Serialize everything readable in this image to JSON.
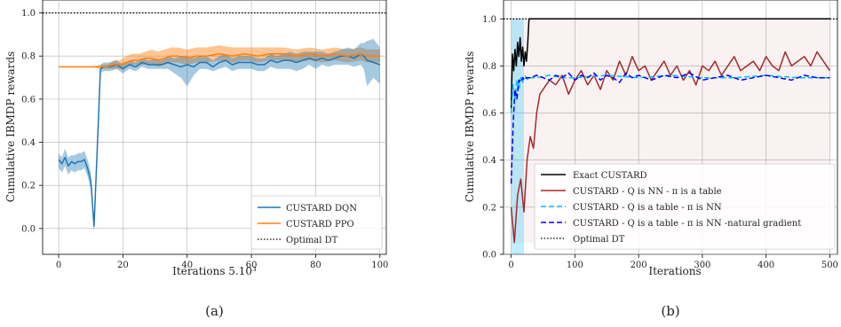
{
  "chart_data": [
    {
      "type": "line",
      "xlabel": "Iterations 5.10³",
      "ylabel": "Cumulative IBMDP rewards",
      "xlim": [
        -5,
        102
      ],
      "ylim": [
        -0.12,
        1.06
      ],
      "xticks": [
        0,
        20,
        40,
        60,
        80,
        100
      ],
      "xtick_labels": [
        "0",
        "20",
        "40",
        "60",
        "80",
        "100"
      ],
      "yticks": [
        0.0,
        0.2,
        0.4,
        0.6,
        0.8,
        1.0
      ],
      "ytick_labels": [
        "0.0",
        "0.2",
        "0.4",
        "0.6",
        "0.8",
        "1.0"
      ],
      "grid": true,
      "legend_position": "bottom-right",
      "caption": "(a)",
      "series": [
        {
          "name": "CUSTARD DQN",
          "color": "#1f77b4",
          "style": "solid",
          "x": [
            0,
            1,
            2,
            3,
            4,
            5,
            6,
            7,
            8,
            9,
            10,
            11,
            12,
            13,
            14,
            16,
            18,
            20,
            22,
            24,
            26,
            28,
            30,
            32,
            34,
            36,
            38,
            40,
            42,
            44,
            46,
            48,
            50,
            52,
            54,
            56,
            58,
            60,
            62,
            64,
            66,
            68,
            70,
            72,
            74,
            76,
            78,
            80,
            82,
            84,
            86,
            88,
            90,
            92,
            94,
            95,
            96,
            98,
            100
          ],
          "y": [
            0.32,
            0.3,
            0.33,
            0.29,
            0.31,
            0.3,
            0.31,
            0.31,
            0.32,
            0.28,
            0.22,
            0.01,
            0.37,
            0.74,
            0.75,
            0.75,
            0.76,
            0.74,
            0.76,
            0.75,
            0.77,
            0.76,
            0.76,
            0.76,
            0.77,
            0.76,
            0.75,
            0.76,
            0.75,
            0.77,
            0.77,
            0.75,
            0.77,
            0.78,
            0.76,
            0.77,
            0.77,
            0.77,
            0.76,
            0.76,
            0.78,
            0.77,
            0.78,
            0.78,
            0.77,
            0.78,
            0.79,
            0.78,
            0.79,
            0.78,
            0.79,
            0.8,
            0.8,
            0.79,
            0.81,
            0.8,
            0.78,
            0.77,
            0.76
          ],
          "lower": [
            0.28,
            0.26,
            0.29,
            0.25,
            0.27,
            0.26,
            0.27,
            0.27,
            0.28,
            0.24,
            0.18,
            -0.02,
            0.34,
            0.72,
            0.73,
            0.73,
            0.74,
            0.72,
            0.74,
            0.73,
            0.75,
            0.74,
            0.74,
            0.74,
            0.74,
            0.72,
            0.7,
            0.66,
            0.71,
            0.74,
            0.74,
            0.73,
            0.74,
            0.75,
            0.73,
            0.74,
            0.74,
            0.74,
            0.73,
            0.73,
            0.75,
            0.74,
            0.74,
            0.74,
            0.73,
            0.74,
            0.76,
            0.74,
            0.76,
            0.75,
            0.76,
            0.76,
            0.76,
            0.75,
            0.76,
            0.74,
            0.66,
            0.7,
            0.67
          ],
          "upper": [
            0.35,
            0.33,
            0.37,
            0.33,
            0.34,
            0.34,
            0.35,
            0.35,
            0.36,
            0.32,
            0.26,
            0.03,
            0.4,
            0.76,
            0.77,
            0.77,
            0.78,
            0.76,
            0.78,
            0.77,
            0.79,
            0.78,
            0.79,
            0.78,
            0.8,
            0.79,
            0.8,
            0.8,
            0.79,
            0.8,
            0.8,
            0.78,
            0.8,
            0.81,
            0.79,
            0.8,
            0.8,
            0.8,
            0.79,
            0.79,
            0.81,
            0.8,
            0.81,
            0.82,
            0.81,
            0.82,
            0.82,
            0.82,
            0.82,
            0.81,
            0.82,
            0.83,
            0.84,
            0.83,
            0.86,
            0.86,
            0.87,
            0.88,
            0.84
          ]
        },
        {
          "name": "CUSTARD PPO",
          "color": "#ff7f0e",
          "style": "solid",
          "x": [
            0,
            5,
            10,
            13,
            15,
            17,
            19,
            21,
            23,
            25,
            27,
            29,
            31,
            33,
            35,
            37,
            40,
            43,
            46,
            50,
            54,
            58,
            62,
            66,
            70,
            74,
            78,
            82,
            86,
            90,
            94,
            96,
            98,
            100
          ],
          "y": [
            0.75,
            0.75,
            0.75,
            0.75,
            0.75,
            0.76,
            0.76,
            0.77,
            0.78,
            0.78,
            0.79,
            0.79,
            0.78,
            0.79,
            0.8,
            0.8,
            0.79,
            0.8,
            0.8,
            0.81,
            0.8,
            0.81,
            0.8,
            0.81,
            0.81,
            0.8,
            0.81,
            0.8,
            0.81,
            0.8,
            0.81,
            0.8,
            0.8,
            0.8
          ],
          "lower": [
            0.75,
            0.75,
            0.75,
            0.74,
            0.74,
            0.74,
            0.74,
            0.75,
            0.76,
            0.76,
            0.76,
            0.76,
            0.75,
            0.76,
            0.77,
            0.77,
            0.76,
            0.77,
            0.77,
            0.78,
            0.77,
            0.78,
            0.77,
            0.78,
            0.78,
            0.77,
            0.78,
            0.77,
            0.78,
            0.77,
            0.78,
            0.77,
            0.77,
            0.77
          ],
          "upper": [
            0.75,
            0.75,
            0.75,
            0.76,
            0.76,
            0.78,
            0.78,
            0.8,
            0.81,
            0.81,
            0.82,
            0.83,
            0.82,
            0.83,
            0.84,
            0.84,
            0.83,
            0.84,
            0.84,
            0.85,
            0.84,
            0.84,
            0.84,
            0.84,
            0.84,
            0.83,
            0.84,
            0.83,
            0.84,
            0.83,
            0.84,
            0.83,
            0.83,
            0.83
          ]
        },
        {
          "name": "Optimal DT",
          "color": "#000000",
          "style": "dotted",
          "x": [
            -5,
            102
          ],
          "y": [
            1.0,
            1.0
          ]
        }
      ]
    },
    {
      "type": "line",
      "xlabel": "Iterations",
      "ylabel": "Cumulative IBMDP rewards",
      "xlim": [
        -12,
        512
      ],
      "ylim": [
        0.0,
        1.08
      ],
      "xticks": [
        0,
        100,
        200,
        300,
        400,
        500
      ],
      "xtick_labels": [
        "0",
        "100",
        "200",
        "300",
        "400",
        "500"
      ],
      "yticks": [
        0.0,
        0.2,
        0.4,
        0.6,
        0.8,
        1.0
      ],
      "ytick_labels": [
        "0.0",
        "0.2",
        "0.4",
        "0.6",
        "0.8",
        "1.0"
      ],
      "grid": true,
      "legend_position": "bottom-right",
      "caption": "(b)",
      "series": [
        {
          "name": "Exact CUSTARD",
          "color": "#000000",
          "style": "solid",
          "x": [
            0,
            2,
            4,
            6,
            8,
            10,
            12,
            14,
            16,
            18,
            20,
            22,
            24,
            26,
            28,
            500
          ],
          "y": [
            0.62,
            0.85,
            0.78,
            0.87,
            0.8,
            0.9,
            0.84,
            0.92,
            0.82,
            0.88,
            0.8,
            0.86,
            0.82,
            0.9,
            1.0,
            1.0
          ]
        },
        {
          "name": "CUSTARD - Q is NN - π is a table",
          "color": "#a52a2a",
          "style": "solid",
          "x": [
            0,
            5,
            10,
            15,
            20,
            25,
            30,
            35,
            40,
            45,
            50,
            60,
            70,
            80,
            90,
            100,
            110,
            120,
            130,
            140,
            150,
            160,
            170,
            180,
            190,
            200,
            210,
            220,
            230,
            240,
            250,
            260,
            270,
            280,
            290,
            300,
            310,
            320,
            330,
            340,
            350,
            360,
            370,
            380,
            390,
            400,
            410,
            420,
            430,
            440,
            450,
            460,
            470,
            480,
            490,
            500
          ],
          "y": [
            0.2,
            0.05,
            0.25,
            0.32,
            0.18,
            0.4,
            0.5,
            0.45,
            0.6,
            0.68,
            0.7,
            0.74,
            0.72,
            0.76,
            0.68,
            0.74,
            0.78,
            0.72,
            0.76,
            0.7,
            0.78,
            0.74,
            0.82,
            0.76,
            0.84,
            0.78,
            0.8,
            0.74,
            0.78,
            0.82,
            0.76,
            0.8,
            0.74,
            0.78,
            0.72,
            0.8,
            0.78,
            0.82,
            0.76,
            0.8,
            0.84,
            0.78,
            0.8,
            0.82,
            0.78,
            0.84,
            0.8,
            0.78,
            0.86,
            0.8,
            0.82,
            0.84,
            0.8,
            0.86,
            0.82,
            0.78
          ]
        },
        {
          "name": "CUSTARD - Q is a table - π is NN",
          "color": "#00bfff",
          "style": "dashed",
          "x": [
            0,
            3,
            6,
            9,
            12,
            15,
            18,
            21,
            24,
            27,
            30,
            40,
            60,
            80,
            100,
            150,
            200,
            250,
            300,
            350,
            400,
            450,
            500
          ],
          "y": [
            0.6,
            0.72,
            0.66,
            0.74,
            0.7,
            0.75,
            0.73,
            0.76,
            0.75,
            0.74,
            0.75,
            0.75,
            0.76,
            0.75,
            0.75,
            0.76,
            0.75,
            0.76,
            0.75,
            0.75,
            0.76,
            0.75,
            0.75
          ]
        },
        {
          "name": "CUSTARD - Q is a table - π is NN -natural gradient",
          "color": "#0000ff",
          "style": "dashed",
          "x": [
            0,
            3,
            6,
            9,
            12,
            15,
            18,
            21,
            24,
            30,
            40,
            50,
            60,
            70,
            80,
            90,
            100,
            110,
            120,
            130,
            140,
            150,
            160,
            170,
            180,
            190,
            200,
            220,
            240,
            260,
            280,
            300,
            320,
            340,
            360,
            380,
            400,
            420,
            440,
            460,
            480,
            500
          ],
          "y": [
            0.3,
            0.55,
            0.7,
            0.66,
            0.74,
            0.73,
            0.75,
            0.74,
            0.75,
            0.75,
            0.76,
            0.75,
            0.74,
            0.76,
            0.75,
            0.77,
            0.74,
            0.76,
            0.75,
            0.77,
            0.74,
            0.76,
            0.75,
            0.73,
            0.77,
            0.75,
            0.76,
            0.74,
            0.76,
            0.75,
            0.77,
            0.74,
            0.75,
            0.76,
            0.74,
            0.75,
            0.76,
            0.75,
            0.74,
            0.76,
            0.75,
            0.75
          ]
        },
        {
          "name": "Optimal DT",
          "color": "#000000",
          "style": "dotted",
          "x": [
            -12,
            512
          ],
          "y": [
            1.0,
            1.0
          ]
        }
      ]
    }
  ]
}
